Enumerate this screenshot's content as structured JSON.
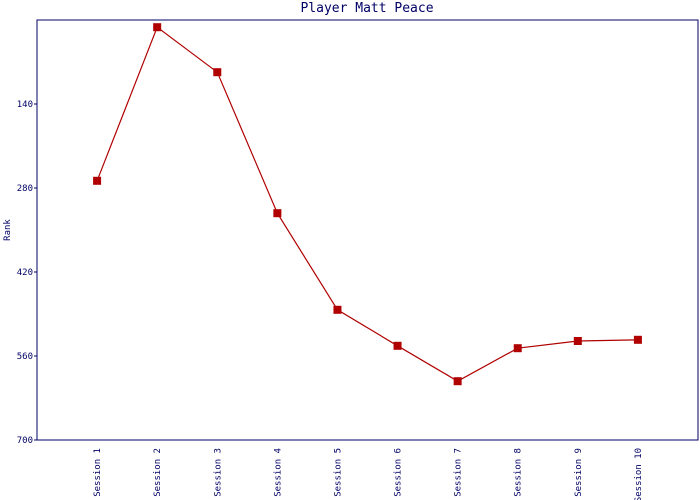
{
  "chart_data": {
    "type": "line",
    "title": "Player Matt Peace",
    "y_label": "Rank",
    "categories": [
      "Session 1",
      "Session 2",
      "Session 3",
      "Session 4",
      "Session 5",
      "Session 6",
      "Session 7",
      "Session 8",
      "Session 9",
      "Session 10"
    ],
    "series": [
      {
        "name": "Rank",
        "color": "#b00000",
        "values": [
          268,
          12,
          87,
          322,
          483,
          543,
          602,
          547,
          535,
          533
        ]
      }
    ],
    "ylim": [
      0,
      700
    ],
    "y_inverted": true,
    "yticks": [
      140,
      280,
      420,
      560,
      700
    ],
    "grid": false
  }
}
